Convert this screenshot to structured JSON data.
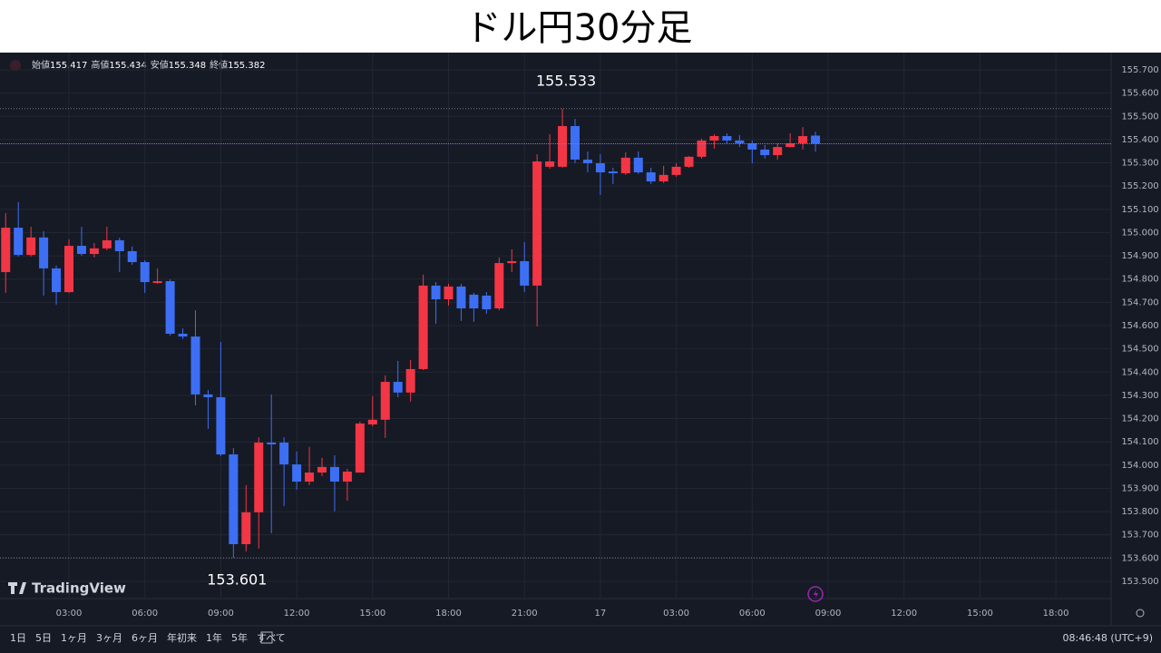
{
  "page_title": "ドル円30分足",
  "brand": "TradingView",
  "toolbar": {
    "ranges": [
      "1日",
      "5日",
      "1ヶ月",
      "3ヶ月",
      "6ヶ月",
      "年初来",
      "1年",
      "5年",
      "すべて"
    ],
    "clock": "08:46:48 (UTC+9)"
  },
  "chart_data": {
    "type": "candlestick",
    "ohlc_labels": [
      "始値",
      "高値",
      "安値",
      "終値"
    ],
    "up_color": "#f23645",
    "down_color": "#3d6ff5",
    "grid": true,
    "categories": [
      null,
      null,
      null,
      null,
      null,
      "03:00",
      null,
      null,
      null,
      null,
      null,
      "06:00",
      null,
      null,
      null,
      null,
      null,
      "09:00",
      null,
      null,
      null,
      null,
      null,
      "12:00",
      null,
      null,
      null,
      null,
      null,
      "15:00",
      null,
      null,
      null,
      null,
      null,
      "18:00",
      null,
      null,
      null,
      null,
      null,
      "21:00",
      null,
      null,
      null,
      null,
      null,
      "17",
      null,
      null,
      null,
      null,
      null,
      "03:00",
      null,
      null,
      null,
      null,
      null,
      "06:00",
      null,
      null,
      null,
      null,
      null,
      "09:00",
      null,
      null,
      null,
      null,
      null,
      "12:00",
      null,
      null,
      null,
      null,
      null,
      "15:00",
      null,
      null,
      null,
      null,
      null,
      "18:00",
      null,
      null,
      null
    ],
    "open": [
      154.83,
      155.021,
      154.904,
      154.979,
      154.846,
      154.744,
      154.943,
      154.908,
      154.932,
      154.967,
      154.92,
      154.873,
      154.783,
      154.791,
      154.565,
      154.553,
      154.304,
      154.292,
      154.046,
      153.66,
      153.797,
      154.097,
      154.097,
      154.003,
      153.929,
      153.968,
      153.992,
      153.929,
      153.968,
      154.175,
      154.195,
      154.358,
      154.312,
      154.413,
      154.772,
      154.713,
      154.768,
      154.733,
      154.729,
      154.674,
      154.869,
      154.877,
      154.772,
      155.283,
      155.283,
      155.458,
      155.314,
      155.298,
      155.263,
      155.255,
      155.322,
      155.259,
      155.22,
      155.248,
      155.283,
      155.326,
      155.396,
      155.415,
      155.396,
      155.384,
      155.357,
      155.333,
      155.368,
      155.384,
      155.417,
      null,
      null,
      null,
      null,
      null,
      null,
      null,
      null,
      null,
      null,
      null,
      null,
      null,
      null,
      null,
      null,
      null,
      null,
      null,
      null,
      null,
      null
    ],
    "high": [
      155.084,
      155.131,
      155.025,
      155.006,
      154.858,
      154.971,
      155.025,
      154.955,
      155.025,
      154.978,
      154.94,
      154.881,
      154.846,
      154.799,
      154.588,
      154.666,
      154.323,
      154.53,
      154.074,
      153.914,
      154.12,
      154.304,
      154.12,
      154.058,
      154.078,
      154.031,
      154.042,
      153.984,
      154.187,
      154.296,
      154.386,
      154.448,
      154.452,
      154.819,
      154.787,
      154.78,
      154.78,
      154.741,
      154.744,
      154.893,
      154.928,
      154.959,
      155.337,
      155.423,
      155.533,
      155.489,
      155.349,
      155.337,
      155.279,
      155.345,
      155.349,
      155.279,
      155.287,
      155.298,
      155.329,
      155.404,
      155.423,
      155.427,
      155.419,
      155.396,
      155.376,
      155.384,
      155.427,
      155.454,
      155.434,
      null,
      null,
      null,
      null,
      null,
      null,
      null,
      null,
      null,
      null,
      null,
      null,
      null,
      null,
      null,
      null,
      null,
      null,
      null,
      null,
      null,
      null
    ],
    "low": [
      154.741,
      154.897,
      154.897,
      154.729,
      154.69,
      154.741,
      154.9,
      154.893,
      154.924,
      154.83,
      154.861,
      154.741,
      154.78,
      154.557,
      154.542,
      154.257,
      154.156,
      154.039,
      153.601,
      153.629,
      153.641,
      153.707,
      153.824,
      153.894,
      153.914,
      153.953,
      153.801,
      153.847,
      153.968,
      154.167,
      154.117,
      154.292,
      154.273,
      154.409,
      154.608,
      154.686,
      154.62,
      154.616,
      154.651,
      154.666,
      154.83,
      154.744,
      154.596,
      155.275,
      155.279,
      155.298,
      155.259,
      155.162,
      155.209,
      155.248,
      155.252,
      155.209,
      155.213,
      155.24,
      155.279,
      155.318,
      155.361,
      155.384,
      155.368,
      155.298,
      155.318,
      155.314,
      155.365,
      155.357,
      155.348,
      null,
      null,
      null,
      null,
      null,
      null,
      null,
      null,
      null,
      null,
      null,
      null,
      null,
      null,
      null,
      null,
      null,
      null,
      null,
      null,
      null,
      null
    ],
    "close": [
      155.021,
      154.904,
      154.979,
      154.846,
      154.744,
      154.943,
      154.908,
      154.932,
      154.967,
      154.92,
      154.873,
      154.787,
      154.791,
      154.565,
      154.553,
      154.304,
      154.292,
      154.046,
      153.66,
      153.797,
      154.097,
      154.089,
      154.003,
      153.929,
      153.968,
      153.992,
      153.929,
      153.972,
      154.179,
      154.195,
      154.358,
      154.312,
      154.413,
      154.772,
      154.713,
      154.768,
      154.674,
      154.674,
      154.67,
      154.869,
      154.877,
      154.772,
      155.306,
      155.306,
      155.458,
      155.314,
      155.298,
      155.259,
      155.255,
      155.322,
      155.259,
      155.22,
      155.248,
      155.283,
      155.326,
      155.396,
      155.415,
      155.396,
      155.384,
      155.357,
      155.333,
      155.368,
      155.384,
      155.415,
      155.382,
      null,
      null,
      null,
      null,
      null,
      null,
      null,
      null,
      null,
      null,
      null,
      null,
      null,
      null,
      null,
      null,
      null,
      null,
      null,
      null,
      null,
      null
    ],
    "ylim": [
      153.426,
      155.774
    ],
    "yticks": [
      {
        "value": 153.5,
        "label": "153.500"
      },
      {
        "value": 153.6,
        "label": "153.600"
      },
      {
        "value": 153.7,
        "label": "153.700"
      },
      {
        "value": 153.8,
        "label": "153.800"
      },
      {
        "value": 153.9,
        "label": "153.900"
      },
      {
        "value": 154.0,
        "label": "154.000"
      },
      {
        "value": 154.1,
        "label": "154.100"
      },
      {
        "value": 154.2,
        "label": "154.200"
      },
      {
        "value": 154.3,
        "label": "154.300"
      },
      {
        "value": 154.4,
        "label": "154.400"
      },
      {
        "value": 154.5,
        "label": "154.500"
      },
      {
        "value": 154.6,
        "label": "154.600"
      },
      {
        "value": 154.7,
        "label": "154.700"
      },
      {
        "value": 154.8,
        "label": "154.800"
      },
      {
        "value": 154.9,
        "label": "154.900"
      },
      {
        "value": 155.0,
        "label": "155.000"
      },
      {
        "value": 155.1,
        "label": "155.100"
      },
      {
        "value": 155.2,
        "label": "155.200"
      },
      {
        "value": 155.3,
        "label": "155.300"
      },
      {
        "value": 155.4,
        "label": "155.400"
      },
      {
        "value": 155.5,
        "label": "155.500"
      },
      {
        "value": 155.6,
        "label": "155.600"
      },
      {
        "value": 155.7,
        "label": "155.700"
      }
    ]
  }
}
